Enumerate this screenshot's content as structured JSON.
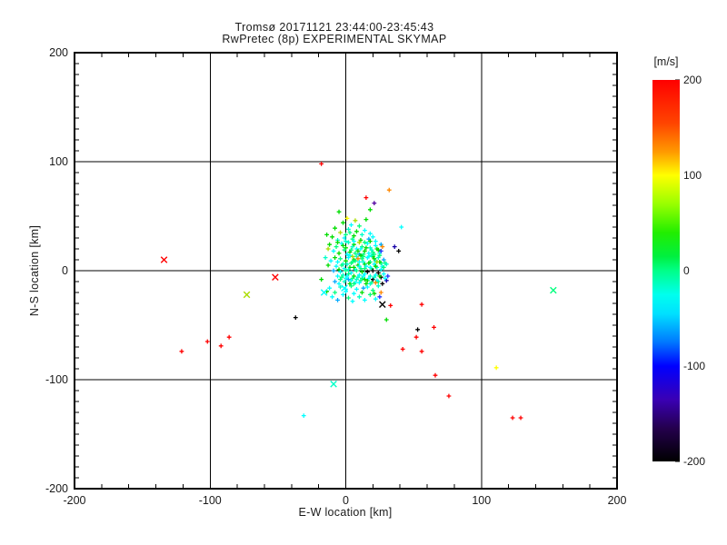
{
  "chart_data": {
    "type": "scatter",
    "title": "Tromsø 20171121 23:44:00-23:45:43",
    "subtitle": "RwPretec (8p) EXPERIMENTAL SKYMAP",
    "xlabel": "E-W location [km]",
    "ylabel": "N-S location [km]",
    "xlim": [
      -200,
      200
    ],
    "ylim": [
      -200,
      200
    ],
    "xticks": [
      -200,
      -100,
      0,
      100,
      200
    ],
    "yticks": [
      -200,
      -100,
      0,
      100,
      200
    ],
    "x_minor_step": 20,
    "y_minor_step": 10,
    "gridlines_x": [
      -100,
      0,
      100
    ],
    "gridlines_y": [
      -100,
      0,
      100
    ],
    "grid_color": "#000000",
    "axis_color": "#000000",
    "background": "#ffffff",
    "legend_position": "right-colorbar",
    "colorbar": {
      "label": "[m/s]",
      "min": -200,
      "max": 200,
      "ticks": [
        200,
        100,
        0,
        -100,
        -200
      ],
      "stops": [
        [
          200,
          "#ff0000"
        ],
        [
          155,
          "#ff4400"
        ],
        [
          125,
          "#ff9900"
        ],
        [
          100,
          "#ffff00"
        ],
        [
          70,
          "#99ff00"
        ],
        [
          40,
          "#22ee00"
        ],
        [
          15,
          "#00f040"
        ],
        [
          0,
          "#00ff88"
        ],
        [
          -25,
          "#00ffee"
        ],
        [
          -45,
          "#00e0ff"
        ],
        [
          -75,
          "#0077ff"
        ],
        [
          -100,
          "#0000ff"
        ],
        [
          -135,
          "#3a00b4"
        ],
        [
          -165,
          "#24004d"
        ],
        [
          -200,
          "#000000"
        ]
      ]
    },
    "palette": {
      "r": "#ff0000",
      "o": "#ff8800",
      "y": "#ffff00",
      "yg": "#aadd00",
      "g": "#00dd00",
      "sg": "#00ff7f",
      "tq": "#00ffc8",
      "c": "#00ffff",
      "lb": "#00aaff",
      "b": "#2233ff",
      "nv": "#1500a8",
      "p": "#5000a0",
      "k": "#000000"
    },
    "marker": "plus",
    "cross_marker": "x",
    "points": [
      [
        -18,
        98,
        "r"
      ],
      [
        32,
        74,
        "o"
      ],
      [
        15,
        67,
        "r"
      ],
      [
        21,
        62,
        "p"
      ],
      [
        18,
        56,
        "g"
      ],
      [
        -5,
        54,
        "g"
      ],
      [
        41,
        40,
        "c"
      ],
      [
        36,
        22,
        "nv"
      ],
      [
        39,
        18,
        "k"
      ],
      [
        -121,
        -74,
        "r"
      ],
      [
        -102,
        -65,
        "r"
      ],
      [
        -92,
        -69,
        "r"
      ],
      [
        -86,
        -61,
        "r"
      ],
      [
        -37,
        -43,
        "k"
      ],
      [
        -31,
        -133,
        "c"
      ],
      [
        33,
        -32,
        "r"
      ],
      [
        56,
        -31,
        "r"
      ],
      [
        30,
        -45,
        "g"
      ],
      [
        65,
        -52,
        "r"
      ],
      [
        53,
        -54,
        "k"
      ],
      [
        52,
        -61,
        "r"
      ],
      [
        42,
        -72,
        "r"
      ],
      [
        56,
        -74,
        "r"
      ],
      [
        66,
        -96,
        "r"
      ],
      [
        76,
        -115,
        "r"
      ],
      [
        111,
        -89,
        "y"
      ],
      [
        123,
        -135,
        "r"
      ],
      [
        129,
        -135,
        "r"
      ],
      [
        1,
        48,
        "y"
      ],
      [
        7,
        46,
        "yg"
      ],
      [
        15,
        47,
        "g"
      ],
      [
        4,
        42,
        "c"
      ],
      [
        -2,
        44,
        "g"
      ],
      [
        10,
        41,
        "sg"
      ],
      [
        -8,
        39,
        "g"
      ],
      [
        2,
        38,
        "tq"
      ],
      [
        8,
        36,
        "g"
      ],
      [
        14,
        37,
        "c"
      ],
      [
        -4,
        35,
        "yg"
      ],
      [
        0,
        33,
        "sg"
      ],
      [
        6,
        32,
        "g"
      ],
      [
        12,
        33,
        "tq"
      ],
      [
        18,
        34,
        "c"
      ],
      [
        -10,
        31,
        "g"
      ],
      [
        -1,
        30,
        "c"
      ],
      [
        5,
        29,
        "sg"
      ],
      [
        11,
        28,
        "g"
      ],
      [
        17,
        29,
        "lb"
      ],
      [
        -6,
        28,
        "tq"
      ],
      [
        20,
        31,
        "c"
      ],
      [
        -14,
        33,
        "g"
      ],
      [
        3,
        35,
        "sg"
      ],
      [
        -12,
        24,
        "g"
      ],
      [
        -7,
        22,
        "sg"
      ],
      [
        -3,
        25,
        "c"
      ],
      [
        0,
        21,
        "g"
      ],
      [
        2,
        26,
        "tq"
      ],
      [
        4,
        19,
        "sg"
      ],
      [
        6,
        24,
        "g"
      ],
      [
        8,
        20,
        "c"
      ],
      [
        10,
        26,
        "yg"
      ],
      [
        12,
        22,
        "sg"
      ],
      [
        14,
        18,
        "g"
      ],
      [
        16,
        25,
        "c"
      ],
      [
        18,
        21,
        "tq"
      ],
      [
        20,
        17,
        "sg"
      ],
      [
        22,
        23,
        "c"
      ],
      [
        24,
        19,
        "g"
      ],
      [
        26,
        24,
        "lb"
      ],
      [
        -9,
        18,
        "c"
      ],
      [
        -5,
        16,
        "g"
      ],
      [
        -1,
        19,
        "sg"
      ],
      [
        1,
        15,
        "c"
      ],
      [
        3,
        17,
        "g"
      ],
      [
        5,
        22,
        "tq"
      ],
      [
        7,
        16,
        "sg"
      ],
      [
        9,
        18,
        "g"
      ],
      [
        11,
        20,
        "c"
      ],
      [
        13,
        15,
        "sg"
      ],
      [
        15,
        21,
        "g"
      ],
      [
        17,
        16,
        "c"
      ],
      [
        19,
        19,
        "tq"
      ],
      [
        21,
        15,
        "sg"
      ],
      [
        23,
        20,
        "g"
      ],
      [
        25,
        16,
        "c"
      ],
      [
        27,
        22,
        "o"
      ],
      [
        -13,
        20,
        "yg"
      ],
      [
        -2,
        23,
        "g"
      ],
      [
        6,
        27,
        "c"
      ],
      [
        10,
        15,
        "lb"
      ],
      [
        14,
        26,
        "sg"
      ],
      [
        18,
        27,
        "g"
      ],
      [
        0,
        27,
        "tq"
      ],
      [
        22,
        27,
        "c"
      ],
      [
        -6,
        26,
        "g"
      ],
      [
        26,
        18,
        "b"
      ],
      [
        -8,
        12,
        "g"
      ],
      [
        -6,
        8,
        "c"
      ],
      [
        -4,
        11,
        "sg"
      ],
      [
        -2,
        6,
        "tq"
      ],
      [
        0,
        9,
        "g"
      ],
      [
        2,
        12,
        "c"
      ],
      [
        4,
        7,
        "sg"
      ],
      [
        6,
        10,
        "g"
      ],
      [
        8,
        13,
        "tq"
      ],
      [
        10,
        8,
        "c"
      ],
      [
        12,
        11,
        "sg"
      ],
      [
        14,
        6,
        "g"
      ],
      [
        16,
        12,
        "c"
      ],
      [
        18,
        8,
        "sg"
      ],
      [
        20,
        13,
        "g"
      ],
      [
        22,
        9,
        "c"
      ],
      [
        24,
        12,
        "tq"
      ],
      [
        26,
        7,
        "sg"
      ],
      [
        28,
        10,
        "lb"
      ],
      [
        -7,
        4,
        "c"
      ],
      [
        -5,
        1,
        "g"
      ],
      [
        -3,
        5,
        "sg"
      ],
      [
        -1,
        2,
        "c"
      ],
      [
        1,
        6,
        "tq"
      ],
      [
        3,
        3,
        "g"
      ],
      [
        5,
        8,
        "sg"
      ],
      [
        7,
        1,
        "c"
      ],
      [
        9,
        5,
        "g"
      ],
      [
        11,
        2,
        "sg"
      ],
      [
        13,
        8,
        "tq"
      ],
      [
        15,
        4,
        "c"
      ],
      [
        17,
        7,
        "g"
      ],
      [
        19,
        2,
        "sg"
      ],
      [
        21,
        6,
        "c"
      ],
      [
        23,
        3,
        "tq"
      ],
      [
        25,
        8,
        "g"
      ],
      [
        27,
        4,
        "c"
      ],
      [
        29,
        7,
        "sg"
      ],
      [
        -9,
        0,
        "lb"
      ],
      [
        -4,
        -1,
        "c"
      ],
      [
        0,
        0,
        "sg"
      ],
      [
        2,
        1,
        "tq"
      ],
      [
        4,
        -2,
        "c"
      ],
      [
        6,
        3,
        "g"
      ],
      [
        8,
        0,
        "sg"
      ],
      [
        10,
        4,
        "c"
      ],
      [
        12,
        -1,
        "g"
      ],
      [
        14,
        2,
        "sg"
      ],
      [
        16,
        -1,
        "k"
      ],
      [
        18,
        3,
        "c"
      ],
      [
        20,
        0,
        "k"
      ],
      [
        22,
        4,
        "g"
      ],
      [
        24,
        -2,
        "k"
      ],
      [
        26,
        1,
        "c"
      ],
      [
        28,
        3,
        "sg"
      ],
      [
        30,
        6,
        "tq"
      ],
      [
        5,
        13,
        "yg"
      ],
      [
        9,
        11,
        "o"
      ],
      [
        13,
        13,
        "sg"
      ],
      [
        17,
        13,
        "c"
      ],
      [
        21,
        11,
        "g"
      ],
      [
        25,
        14,
        "sg"
      ],
      [
        -11,
        9,
        "c"
      ],
      [
        -13,
        5,
        "g"
      ],
      [
        -15,
        12,
        "tq"
      ],
      [
        3,
        14,
        "c"
      ],
      [
        7,
        9,
        "sg"
      ],
      [
        11,
        14,
        "g"
      ],
      [
        19,
        14,
        "tq"
      ],
      [
        23,
        8,
        "yg"
      ],
      [
        -6,
        -5,
        "c"
      ],
      [
        -4,
        -8,
        "sg"
      ],
      [
        -2,
        -4,
        "tq"
      ],
      [
        0,
        -7,
        "c"
      ],
      [
        2,
        -3,
        "sg"
      ],
      [
        4,
        -9,
        "c"
      ],
      [
        6,
        -5,
        "g"
      ],
      [
        8,
        -8,
        "tq"
      ],
      [
        10,
        -4,
        "c"
      ],
      [
        12,
        -7,
        "sg"
      ],
      [
        14,
        -3,
        "c"
      ],
      [
        16,
        -9,
        "g"
      ],
      [
        18,
        -5,
        "tq"
      ],
      [
        20,
        -8,
        "k"
      ],
      [
        22,
        -4,
        "c"
      ],
      [
        24,
        -10,
        "sg"
      ],
      [
        26,
        -6,
        "k"
      ],
      [
        28,
        -3,
        "c"
      ],
      [
        30,
        -9,
        "nv"
      ],
      [
        -8,
        -10,
        "lb"
      ],
      [
        -5,
        -12,
        "c"
      ],
      [
        -3,
        -6,
        "sg"
      ],
      [
        -1,
        -10,
        "tq"
      ],
      [
        1,
        -5,
        "c"
      ],
      [
        3,
        -12,
        "g"
      ],
      [
        5,
        -7,
        "sg"
      ],
      [
        7,
        -11,
        "c"
      ],
      [
        9,
        -6,
        "tq"
      ],
      [
        11,
        -9,
        "sg"
      ],
      [
        13,
        -5,
        "c"
      ],
      [
        15,
        -12,
        "g"
      ],
      [
        17,
        -7,
        "c"
      ],
      [
        19,
        -11,
        "sg"
      ],
      [
        21,
        -6,
        "tq"
      ],
      [
        23,
        -9,
        "c"
      ],
      [
        25,
        -5,
        "g"
      ],
      [
        27,
        -12,
        "k"
      ],
      [
        29,
        -7,
        "c"
      ],
      [
        31,
        -5,
        "b"
      ],
      [
        2,
        -8,
        "lb"
      ],
      [
        6,
        -12,
        "sg"
      ],
      [
        10,
        -11,
        "c"
      ],
      [
        14,
        -8,
        "g"
      ],
      [
        18,
        -12,
        "tq"
      ],
      [
        22,
        -11,
        "o"
      ],
      [
        -12,
        -16,
        "c"
      ],
      [
        -8,
        -20,
        "sg"
      ],
      [
        -4,
        -15,
        "tq"
      ],
      [
        0,
        -19,
        "c"
      ],
      [
        4,
        -14,
        "sg"
      ],
      [
        8,
        -17,
        "c"
      ],
      [
        12,
        -20,
        "g"
      ],
      [
        16,
        -15,
        "c"
      ],
      [
        20,
        -18,
        "sg"
      ],
      [
        24,
        -14,
        "tq"
      ],
      [
        -10,
        -24,
        "c"
      ],
      [
        -6,
        -27,
        "lb"
      ],
      [
        -2,
        -22,
        "c"
      ],
      [
        2,
        -25,
        "sg"
      ],
      [
        6,
        -21,
        "c"
      ],
      [
        10,
        -24,
        "tq"
      ],
      [
        14,
        -27,
        "c"
      ],
      [
        18,
        -22,
        "sg"
      ],
      [
        22,
        -26,
        "c"
      ],
      [
        26,
        -20,
        "o"
      ],
      [
        -14,
        -19,
        "g"
      ],
      [
        5,
        -28,
        "c"
      ],
      [
        13,
        -16,
        "lb"
      ],
      [
        21,
        -21,
        "g"
      ],
      [
        25,
        -24,
        "b"
      ],
      [
        -18,
        -8,
        "g"
      ],
      [
        0,
        -17,
        "c"
      ]
    ],
    "cross_points": [
      [
        -134,
        10,
        "r"
      ],
      [
        -52,
        -6,
        "r"
      ],
      [
        -73,
        -22,
        "yg"
      ],
      [
        27,
        -31,
        "k"
      ],
      [
        153,
        -18,
        "sg"
      ],
      [
        -9,
        -104,
        "tq"
      ],
      [
        -1,
        -16,
        "c"
      ],
      [
        -16,
        -20,
        "c"
      ]
    ]
  }
}
